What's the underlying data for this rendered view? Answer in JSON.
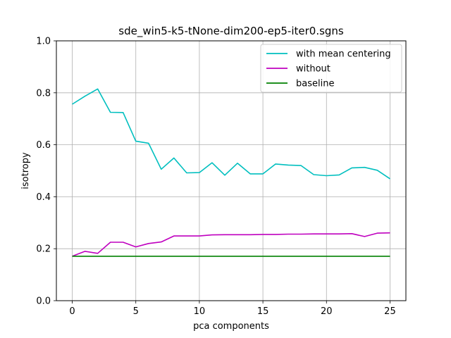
{
  "chart_data": {
    "type": "line",
    "title": "sde_win5-k5-tNone-dim200-ep5-iter0.sgns",
    "xlabel": "pca components",
    "ylabel": "isotropy",
    "xlim": [
      -1.25,
      26.25
    ],
    "ylim": [
      0.0,
      1.0
    ],
    "xticks": [
      0,
      5,
      10,
      15,
      20,
      25
    ],
    "yticks": [
      0.0,
      0.2,
      0.4,
      0.6,
      0.8,
      1.0
    ],
    "xtick_labels": [
      "0",
      "5",
      "10",
      "15",
      "20",
      "25"
    ],
    "ytick_labels": [
      "0.0",
      "0.2",
      "0.4",
      "0.6",
      "0.8",
      "1.0"
    ],
    "grid": true,
    "legend_position": "top-right",
    "x": [
      0,
      1,
      2,
      3,
      4,
      5,
      6,
      7,
      8,
      9,
      10,
      11,
      12,
      13,
      14,
      15,
      16,
      17,
      18,
      19,
      20,
      21,
      22,
      23,
      24,
      25
    ],
    "series": [
      {
        "name": "with mean centering",
        "color": "#00bfbf",
        "values": [
          0.756,
          0.787,
          0.815,
          0.725,
          0.724,
          0.614,
          0.606,
          0.506,
          0.549,
          0.492,
          0.493,
          0.531,
          0.483,
          0.529,
          0.488,
          0.488,
          0.526,
          0.522,
          0.52,
          0.485,
          0.481,
          0.484,
          0.511,
          0.513,
          0.502,
          0.469
        ]
      },
      {
        "name": "without",
        "color": "#bf00bf",
        "values": [
          0.171,
          0.19,
          0.182,
          0.225,
          0.225,
          0.207,
          0.22,
          0.226,
          0.249,
          0.249,
          0.249,
          0.253,
          0.254,
          0.254,
          0.254,
          0.255,
          0.255,
          0.256,
          0.256,
          0.257,
          0.257,
          0.257,
          0.258,
          0.247,
          0.26,
          0.261
        ]
      },
      {
        "name": "baseline",
        "color": "#008000",
        "values": [
          0.171,
          0.171,
          0.171,
          0.171,
          0.171,
          0.171,
          0.171,
          0.171,
          0.171,
          0.171,
          0.171,
          0.171,
          0.171,
          0.171,
          0.171,
          0.171,
          0.171,
          0.171,
          0.171,
          0.171,
          0.171,
          0.171,
          0.171,
          0.171,
          0.171,
          0.171
        ]
      }
    ]
  }
}
